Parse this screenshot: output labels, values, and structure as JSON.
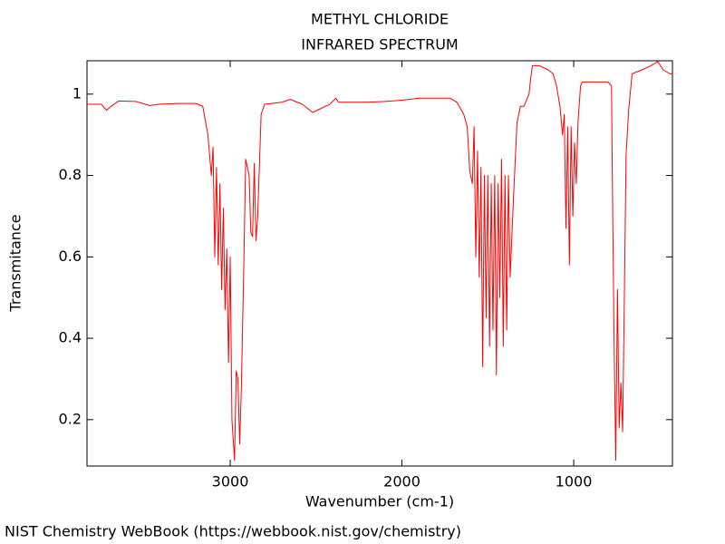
{
  "chart_data": {
    "type": "line",
    "title": "METHYL CHLORIDE",
    "subtitle": "INFRARED SPECTRUM",
    "x_label": "Wavenumber (cm-1)",
    "y_label": "Transmitance",
    "footer": "NIST Chemistry WebBook (https://webbook.nist.gov/chemistry)",
    "color": "#ff0000",
    "xlim": [
      3834,
      425
    ],
    "ylim": [
      0.086,
      1.082
    ],
    "xticks": [
      3000,
      2000,
      1000
    ],
    "yticks": [
      0.2,
      0.4,
      0.6,
      0.8,
      1
    ],
    "x": [
      3834,
      3750,
      3720,
      3700,
      3650,
      3550,
      3470,
      3420,
      3300,
      3200,
      3160,
      3130,
      3110,
      3100,
      3090,
      3080,
      3070,
      3060,
      3050,
      3040,
      3030,
      3020,
      3010,
      3000,
      2990,
      2975,
      2965,
      2955,
      2945,
      2935,
      2920,
      2910,
      2900,
      2890,
      2880,
      2870,
      2860,
      2850,
      2840,
      2820,
      2800,
      2700,
      2650,
      2580,
      2520,
      2470,
      2420,
      2385,
      2370,
      2300,
      2200,
      2100,
      2000,
      1900,
      1800,
      1720,
      1680,
      1640,
      1620,
      1605,
      1590,
      1580,
      1570,
      1560,
      1550,
      1540,
      1530,
      1520,
      1510,
      1500,
      1490,
      1480,
      1470,
      1460,
      1450,
      1440,
      1430,
      1420,
      1410,
      1400,
      1390,
      1380,
      1370,
      1350,
      1330,
      1310,
      1290,
      1260,
      1250,
      1240,
      1200,
      1150,
      1120,
      1100,
      1080,
      1065,
      1055,
      1045,
      1035,
      1025,
      1015,
      1005,
      995,
      985,
      975,
      960,
      950,
      900,
      850,
      800,
      780,
      775,
      765,
      755,
      745,
      735,
      725,
      715,
      705,
      695,
      680,
      660,
      600,
      550,
      510,
      480,
      440,
      425
    ],
    "values": [
      0.975,
      0.975,
      0.96,
      0.968,
      0.983,
      0.982,
      0.972,
      0.975,
      0.977,
      0.977,
      0.97,
      0.9,
      0.8,
      0.87,
      0.6,
      0.82,
      0.58,
      0.78,
      0.52,
      0.72,
      0.47,
      0.62,
      0.34,
      0.6,
      0.2,
      0.1,
      0.32,
      0.3,
      0.14,
      0.28,
      0.6,
      0.84,
      0.82,
      0.8,
      0.66,
      0.65,
      0.83,
      0.64,
      0.7,
      0.95,
      0.975,
      0.98,
      0.987,
      0.975,
      0.955,
      0.965,
      0.975,
      0.99,
      0.98,
      0.98,
      0.98,
      0.982,
      0.985,
      0.99,
      0.99,
      0.99,
      0.98,
      0.95,
      0.92,
      0.81,
      0.78,
      0.92,
      0.6,
      0.86,
      0.55,
      0.82,
      0.33,
      0.8,
      0.45,
      0.8,
      0.38,
      0.78,
      0.42,
      0.8,
      0.31,
      0.78,
      0.5,
      0.84,
      0.38,
      0.8,
      0.42,
      0.8,
      0.55,
      0.75,
      0.93,
      0.97,
      0.97,
      1.0,
      1.04,
      1.07,
      1.07,
      1.06,
      1.05,
      1.02,
      0.97,
      0.9,
      0.95,
      0.67,
      0.92,
      0.58,
      0.92,
      0.7,
      0.88,
      0.78,
      0.93,
      1.02,
      1.03,
      1.03,
      1.03,
      1.03,
      1.02,
      0.8,
      0.4,
      0.1,
      0.52,
      0.18,
      0.29,
      0.17,
      0.5,
      0.85,
      0.96,
      1.05,
      1.06,
      1.07,
      1.08,
      1.06,
      1.05,
      1.05
    ]
  }
}
